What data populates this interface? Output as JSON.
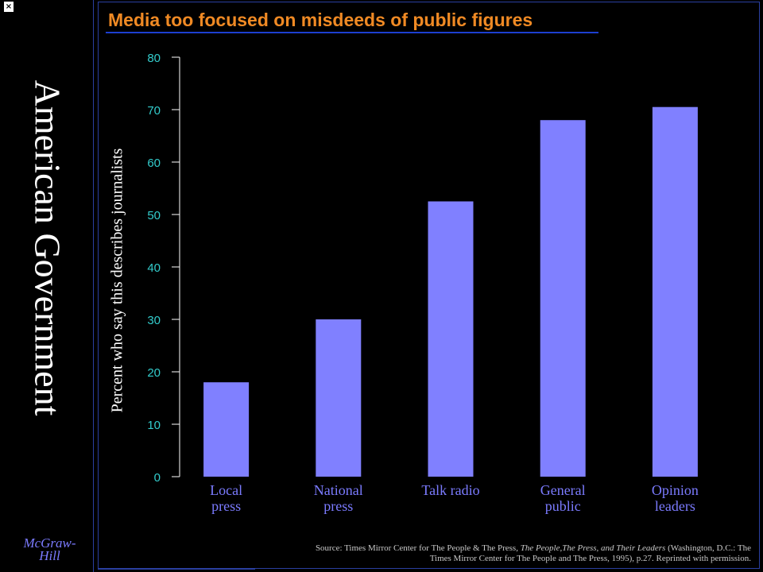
{
  "sidebar": {
    "title": "American Government",
    "publisher_line1": "McGraw-",
    "publisher_line2": "Hill",
    "close_glyph": "×"
  },
  "source": {
    "prefix": "Source: Times Mirror Center for The People & The Press, ",
    "italic": "The People,The Press, and Their Leaders",
    "suffix": " (Washington, D.C.: The Times Mirror Center for The People and The Press, 1995), p.27. Reprinted with permission."
  },
  "colors": {
    "background": "#000000",
    "bar": "#8080ff",
    "title": "#f08a24",
    "tick_labels": "#33cccc",
    "category_labels": "#7b7bff",
    "text": "#ffffff"
  },
  "chart_data": {
    "type": "bar",
    "title": "Media too focused on misdeeds of public figures",
    "xlabel": "",
    "ylabel": "Percent who say this describes journalists",
    "ylim": [
      0,
      80
    ],
    "yticks": [
      0,
      10,
      20,
      30,
      40,
      50,
      60,
      70,
      80
    ],
    "categories": [
      [
        "Local",
        "press"
      ],
      [
        "National",
        "press"
      ],
      [
        "Talk radio"
      ],
      [
        "General",
        "public"
      ],
      [
        "Opinion",
        "leaders"
      ]
    ],
    "values": [
      18,
      30,
      52.5,
      68,
      70.5
    ],
    "grid": false,
    "legend": "none"
  }
}
